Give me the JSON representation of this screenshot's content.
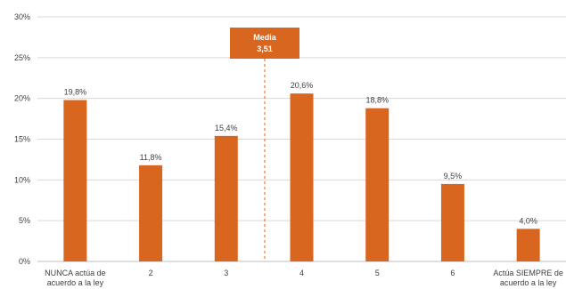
{
  "chart_data": {
    "type": "bar",
    "title": "",
    "xlabel": "",
    "ylabel": "",
    "ylim": [
      0,
      30
    ],
    "yticks": [
      0,
      5,
      10,
      15,
      20,
      25,
      30
    ],
    "ytick_labels": [
      "0%",
      "5%",
      "10%",
      "15%",
      "20%",
      "25%",
      "30%"
    ],
    "categories": [
      [
        "NUNCA actúa de",
        "acuerdo a la ley"
      ],
      [
        "2"
      ],
      [
        "3"
      ],
      [
        "4"
      ],
      [
        "5"
      ],
      [
        "6"
      ],
      [
        "Actúa SIEMPRE de",
        "acuerdo a la ley"
      ]
    ],
    "values": [
      19.8,
      11.8,
      15.4,
      20.6,
      18.8,
      9.5,
      4.0
    ],
    "value_labels": [
      "19,8%",
      "11,8%",
      "15,4%",
      "20,6%",
      "18,8%",
      "9,5%",
      "4,0%"
    ],
    "bar_color": "#d9661f",
    "grid": true,
    "annotation": {
      "label": "Media",
      "value": 3.51,
      "value_label": "3,51",
      "box_color": "#d9661f",
      "line_color": "#d9661f"
    }
  }
}
